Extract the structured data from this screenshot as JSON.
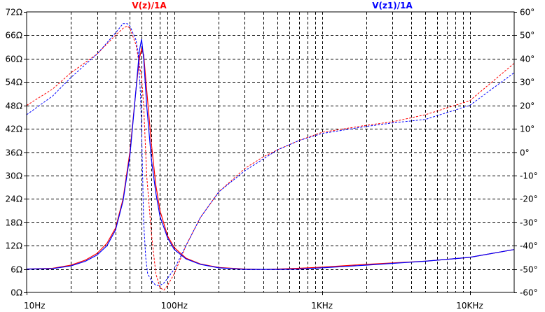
{
  "chart_data": {
    "type": "line",
    "x_scale": "log",
    "x_ticks": [
      "10Hz",
      "100Hz",
      "1KHz",
      "10KHz"
    ],
    "xlim": [
      10,
      20000
    ],
    "y_left_ticks": [
      "0Ω",
      "6Ω",
      "12Ω",
      "18Ω",
      "24Ω",
      "30Ω",
      "36Ω",
      "42Ω",
      "48Ω",
      "54Ω",
      "60Ω",
      "66Ω",
      "72Ω"
    ],
    "ylim_left": [
      0,
      72
    ],
    "y_right_ticks": [
      "-60°",
      "-50°",
      "-40°",
      "-30°",
      "-20°",
      "-10°",
      "0°",
      "10°",
      "20°",
      "30°",
      "40°",
      "50°",
      "60°"
    ],
    "ylim_right": [
      -60,
      60
    ],
    "grid": true,
    "colors": {
      "red": "#ff0000",
      "blue": "#0000ff",
      "grid": "#000000"
    },
    "series": [
      {
        "name": "V(z)/1A",
        "color": "#ff0000",
        "magnitude": [
          [
            10,
            6.0
          ],
          [
            15,
            6.2
          ],
          [
            20,
            7.0
          ],
          [
            25,
            8.3
          ],
          [
            30,
            10.0
          ],
          [
            35,
            12.6
          ],
          [
            40,
            16.5
          ],
          [
            45,
            24.0
          ],
          [
            50,
            36.0
          ],
          [
            55,
            52.0
          ],
          [
            58,
            60.0
          ],
          [
            60,
            62.5
          ],
          [
            62,
            61.0
          ],
          [
            65,
            52.0
          ],
          [
            70,
            38.0
          ],
          [
            75,
            27.5
          ],
          [
            80,
            21.0
          ],
          [
            90,
            14.5
          ],
          [
            100,
            11.5
          ],
          [
            120,
            8.8
          ],
          [
            150,
            7.3
          ],
          [
            200,
            6.4
          ],
          [
            300,
            6.0
          ],
          [
            400,
            5.9
          ],
          [
            500,
            6.0
          ],
          [
            700,
            6.2
          ],
          [
            1000,
            6.5
          ],
          [
            2000,
            7.2
          ],
          [
            5000,
            8.0
          ],
          [
            10000,
            9.0
          ],
          [
            20000,
            11.0
          ]
        ],
        "phase": [
          [
            10,
            20.0
          ],
          [
            15,
            27.0
          ],
          [
            20,
            34.0
          ],
          [
            30,
            42.0
          ],
          [
            40,
            50.0
          ],
          [
            45,
            53.0
          ],
          [
            48,
            54.0
          ],
          [
            50,
            53.0
          ],
          [
            55,
            46.0
          ],
          [
            60,
            32.0
          ],
          [
            62,
            20.0
          ],
          [
            65,
            -10.0
          ],
          [
            70,
            -35.0
          ],
          [
            75,
            -52.0
          ],
          [
            80,
            -58.0
          ],
          [
            85,
            -59.0
          ],
          [
            90,
            -57.0
          ],
          [
            100,
            -52.0
          ],
          [
            120,
            -40.0
          ],
          [
            150,
            -28.0
          ],
          [
            200,
            -17.0
          ],
          [
            300,
            -7.0
          ],
          [
            400,
            -2.0
          ],
          [
            500,
            1.0
          ],
          [
            700,
            5.0
          ],
          [
            1000,
            8.5
          ],
          [
            2000,
            11.5
          ],
          [
            3000,
            13.0
          ],
          [
            5000,
            16.0
          ],
          [
            10000,
            22.0
          ],
          [
            20000,
            38.0
          ]
        ]
      },
      {
        "name": "V(z1)/1A",
        "color": "#0000ff",
        "magnitude": [
          [
            10,
            6.0
          ],
          [
            15,
            6.1
          ],
          [
            20,
            6.8
          ],
          [
            25,
            8.0
          ],
          [
            30,
            9.6
          ],
          [
            35,
            12.0
          ],
          [
            40,
            16.0
          ],
          [
            45,
            23.5
          ],
          [
            50,
            35.0
          ],
          [
            55,
            52.0
          ],
          [
            58,
            62.0
          ],
          [
            60,
            65.0
          ],
          [
            62,
            60.0
          ],
          [
            65,
            48.0
          ],
          [
            70,
            34.0
          ],
          [
            75,
            25.5
          ],
          [
            80,
            19.5
          ],
          [
            90,
            14.0
          ],
          [
            100,
            11.0
          ],
          [
            120,
            8.6
          ],
          [
            150,
            7.2
          ],
          [
            200,
            6.3
          ],
          [
            300,
            5.9
          ],
          [
            400,
            5.9
          ],
          [
            500,
            5.9
          ],
          [
            700,
            6.0
          ],
          [
            1000,
            6.3
          ],
          [
            2000,
            7.0
          ],
          [
            5000,
            8.0
          ],
          [
            10000,
            9.0
          ],
          [
            20000,
            11.0
          ]
        ],
        "phase": [
          [
            10,
            16.0
          ],
          [
            15,
            24.0
          ],
          [
            20,
            32.0
          ],
          [
            30,
            42.0
          ],
          [
            40,
            51.0
          ],
          [
            45,
            55.0
          ],
          [
            48,
            55.0
          ],
          [
            50,
            54.0
          ],
          [
            55,
            48.0
          ],
          [
            57,
            42.0
          ],
          [
            59,
            25.0
          ],
          [
            60,
            10.0
          ],
          [
            61,
            -10.0
          ],
          [
            62,
            -30.0
          ],
          [
            64,
            -45.0
          ],
          [
            66,
            -52.0
          ],
          [
            70,
            -55.0
          ],
          [
            75,
            -57.0
          ],
          [
            80,
            -57.0
          ],
          [
            85,
            -56.0
          ],
          [
            90,
            -54.0
          ],
          [
            100,
            -50.0
          ],
          [
            120,
            -40.0
          ],
          [
            150,
            -28.0
          ],
          [
            200,
            -17.0
          ],
          [
            300,
            -8.0
          ],
          [
            500,
            1.0
          ],
          [
            700,
            5.0
          ],
          [
            1000,
            8.0
          ],
          [
            2000,
            11.0
          ],
          [
            3000,
            12.5
          ],
          [
            5000,
            14.0
          ],
          [
            10000,
            20.0
          ],
          [
            20000,
            34.0
          ]
        ]
      }
    ]
  }
}
